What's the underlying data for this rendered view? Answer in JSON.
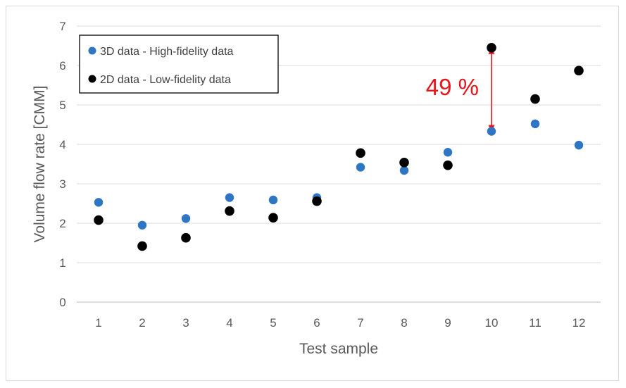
{
  "chart_data": {
    "type": "scatter",
    "title": "",
    "xlabel": "Test sample",
    "ylabel": "Volume flow rate [CMM]",
    "xlim": [
      0.5,
      12.5
    ],
    "ylim": [
      0,
      7
    ],
    "grid": true,
    "legend_position": "top-left",
    "x": [
      1,
      2,
      3,
      4,
      5,
      6,
      7,
      8,
      9,
      10,
      11,
      12
    ],
    "x_tick_labels": [
      "1",
      "2",
      "3",
      "4",
      "5",
      "6",
      "7",
      "8",
      "9",
      "10",
      "11",
      "12"
    ],
    "y_tick_labels": [
      "0",
      "1",
      "2",
      "3",
      "4",
      "5",
      "6",
      "7"
    ],
    "series": [
      {
        "name": "3D data - High-fidelity data",
        "color": "#2e75c4",
        "values": [
          2.53,
          1.95,
          2.12,
          2.65,
          2.59,
          2.65,
          3.42,
          3.34,
          3.8,
          4.33,
          4.52,
          3.98
        ]
      },
      {
        "name": "2D data - Low-fidelity data",
        "color": "#000000",
        "values": [
          2.08,
          1.42,
          1.63,
          2.31,
          2.14,
          2.56,
          3.78,
          3.54,
          3.47,
          6.45,
          5.15,
          5.87
        ]
      }
    ],
    "annotations": [
      {
        "text": "49 %",
        "x": 10,
        "y_from": 4.33,
        "y_to": 6.45,
        "color": "#e8141b"
      }
    ]
  }
}
